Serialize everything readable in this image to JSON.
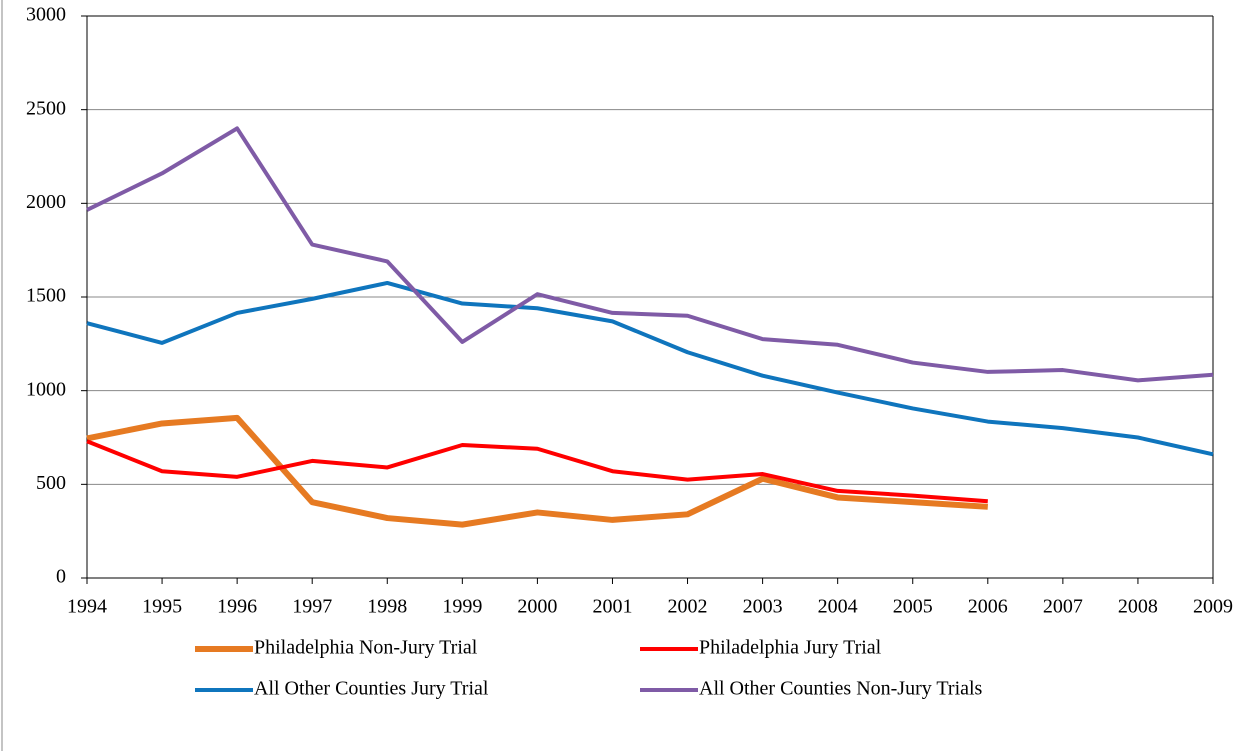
{
  "chart_data": {
    "type": "line",
    "x": [
      1994,
      1995,
      1996,
      1997,
      1998,
      1999,
      2000,
      2001,
      2002,
      2003,
      2004,
      2005,
      2006,
      2007,
      2008,
      2009
    ],
    "xlim": [
      1994,
      2009
    ],
    "xticks": [
      1994,
      1995,
      1996,
      1997,
      1998,
      1999,
      2000,
      2001,
      2002,
      2003,
      2004,
      2005,
      2006,
      2007,
      2008,
      2009
    ],
    "ylim": [
      0,
      3000
    ],
    "yticks": [
      0,
      500,
      1000,
      1500,
      2000,
      2500,
      3000
    ],
    "grid": true,
    "legend": "bottom",
    "series": [
      {
        "name": "Philadelphia Non-Jury Trial",
        "color": "#e67a22",
        "values": [
          745,
          825,
          855,
          405,
          320,
          285,
          350,
          310,
          340,
          530,
          430,
          405,
          380,
          null,
          null,
          null
        ]
      },
      {
        "name": "Philadelphia Jury Trial",
        "color": "#ff0000",
        "values": [
          730,
          570,
          540,
          625,
          590,
          710,
          690,
          570,
          525,
          555,
          465,
          440,
          410,
          null,
          null,
          null
        ]
      },
      {
        "name": "All Other Counties Jury Trial",
        "color": "#0f75bd",
        "values": [
          1360,
          1255,
          1415,
          1490,
          1575,
          1465,
          1440,
          1370,
          1205,
          1080,
          990,
          905,
          835,
          800,
          750,
          660
        ]
      },
      {
        "name": "All Other Counties Non-Jury Trials",
        "color": "#7f5ba6",
        "values": [
          1965,
          2160,
          2400,
          1780,
          1690,
          1260,
          1515,
          1415,
          1400,
          1275,
          1245,
          1150,
          1100,
          1110,
          1055,
          1085
        ]
      }
    ]
  }
}
